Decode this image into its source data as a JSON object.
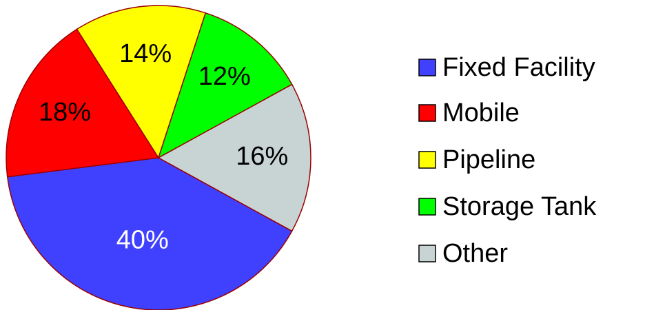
{
  "chart_data": {
    "type": "pie",
    "categories": [
      "Fixed Facility",
      "Mobile",
      "Pipeline",
      "Storage Tank",
      "Other"
    ],
    "values": [
      40,
      18,
      14,
      12,
      16
    ],
    "value_labels": [
      "40%",
      "18%",
      "14%",
      "12%",
      "16%"
    ],
    "colors": [
      "#4040ff",
      "#ff0000",
      "#ffff00",
      "#00ff00",
      "#c8d4d4"
    ],
    "legend": "right"
  }
}
